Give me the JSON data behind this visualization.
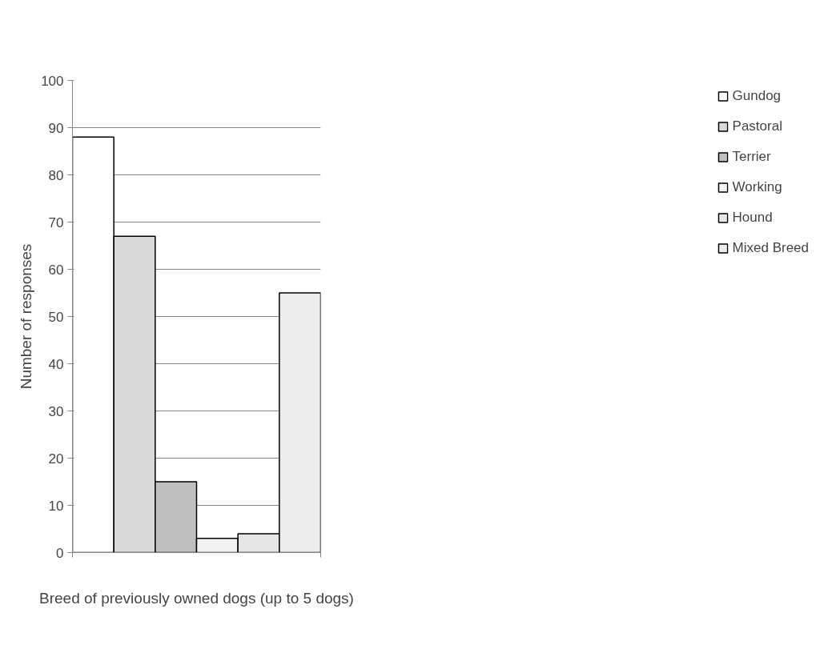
{
  "chart_data": {
    "type": "bar",
    "xlabel": "Breed of previously owned dogs (up to 5 dogs)",
    "ylabel": "Number of responses",
    "categories": [
      null
    ],
    "series": [
      {
        "name": "Gundog",
        "color": "#ffffff",
        "values": [
          88
        ]
      },
      {
        "name": "Pastoral",
        "color": "#d9d9d9",
        "values": [
          67
        ]
      },
      {
        "name": "Terrier",
        "color": "#bfbfbf",
        "values": [
          15
        ]
      },
      {
        "name": "Working",
        "color": "#f2f2f2",
        "values": [
          3
        ]
      },
      {
        "name": "Hound",
        "color": "#e6e6e6",
        "values": [
          4
        ]
      },
      {
        "name": "Mixed Breed",
        "color": "#ececec",
        "values": [
          55
        ]
      }
    ],
    "ylim": [
      0,
      100
    ],
    "yticks": [
      0,
      10,
      20,
      30,
      40,
      50,
      60,
      70,
      80,
      90,
      100
    ],
    "grid": "y",
    "legend": "right",
    "tick_labels": "y"
  }
}
